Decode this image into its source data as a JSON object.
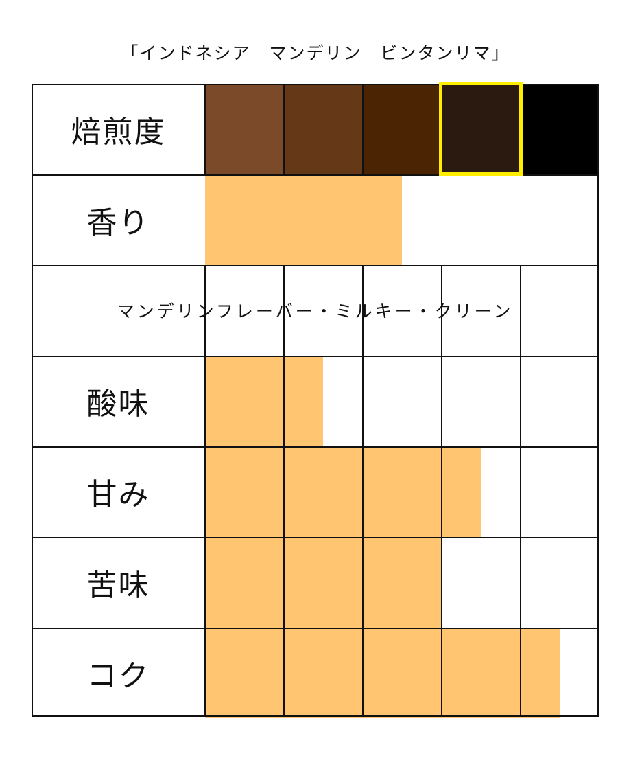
{
  "title": "「インドネシア　マンデリン　ビンタンリマ」",
  "chart_data": {
    "type": "table",
    "title": "「インドネシア　マンデリン　ビンタンリマ」",
    "scale_max": 5,
    "roast": {
      "label": "焙煎度",
      "levels": [
        "#7b4a28",
        "#653817",
        "#4b2503",
        "#2a1a10",
        "#000000"
      ],
      "selected_index": 3,
      "selected_color": "#ffee00"
    },
    "fill_color": "#ffc570",
    "rows": [
      {
        "label": "香り",
        "value": 2.5
      },
      {
        "note": "マンデリンフレーバー・ミルキー・クリーン"
      },
      {
        "label": "酸味",
        "value": 1.5
      },
      {
        "label": "甘み",
        "value": 3.5
      },
      {
        "label": "苦味",
        "value": 3
      },
      {
        "label": "コク",
        "value": 4.5
      }
    ]
  }
}
